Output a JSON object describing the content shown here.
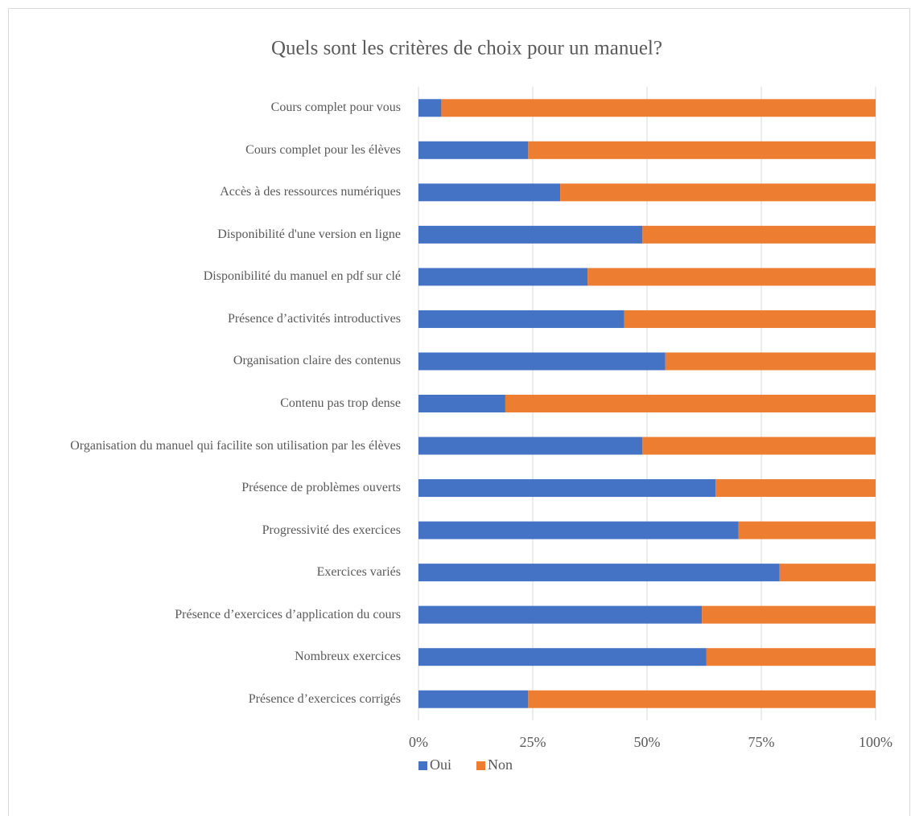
{
  "chart_data": {
    "type": "bar",
    "orientation": "horizontal",
    "stacked": true,
    "title": "Quels sont les critères de choix pour un manuel?",
    "categories": [
      "Cours complet pour vous",
      "Cours complet pour les élèves",
      "Accès à des ressources numériques",
      "Disponibilité d'une version en ligne",
      "Disponibilité du manuel en pdf sur clé",
      "Présence d’activités introductives",
      "Organisation claire des contenus",
      "Contenu pas trop dense",
      "Organisation du manuel qui facilite son utilisation par les élèves",
      "Présence de problèmes ouverts",
      "Progressivité des exercices",
      "Exercices variés",
      "Présence d’exercices d’application du cours",
      "Nombreux exercices",
      "Présence d’exercices corrigés"
    ],
    "series": [
      {
        "name": "Oui",
        "color": "#4472c4",
        "values": [
          5,
          24,
          31,
          49,
          37,
          45,
          54,
          19,
          49,
          65,
          70,
          79,
          62,
          63,
          24
        ]
      },
      {
        "name": "Non",
        "color": "#ed7d31",
        "values": [
          95,
          76,
          69,
          51,
          63,
          55,
          46,
          81,
          51,
          35,
          30,
          21,
          38,
          37,
          76
        ]
      }
    ],
    "xlim": [
      0,
      100
    ],
    "xticks": [
      {
        "value": 0,
        "label": "0%"
      },
      {
        "value": 25,
        "label": "25%"
      },
      {
        "value": 50,
        "label": "50%"
      },
      {
        "value": 75,
        "label": "75%"
      },
      {
        "value": 100,
        "label": "100%"
      }
    ],
    "grid": true,
    "legend": "bottom"
  }
}
